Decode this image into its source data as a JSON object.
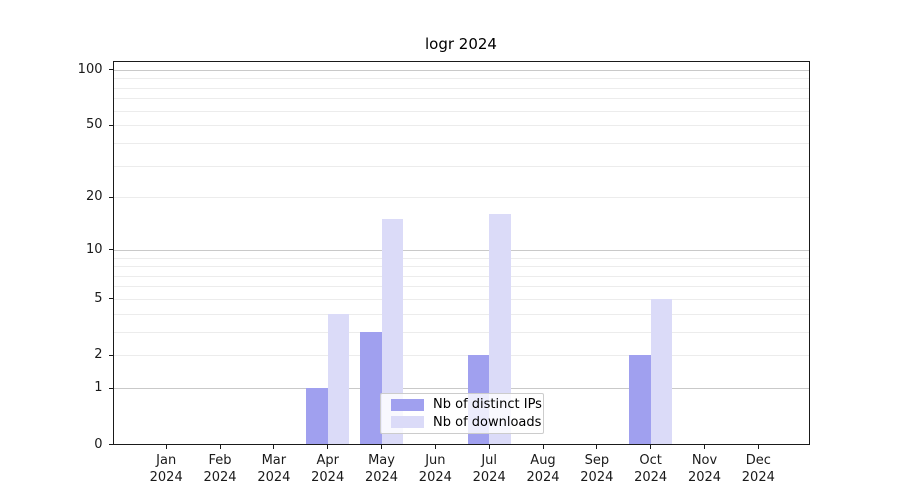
{
  "figure": {
    "title": "logr 2024"
  },
  "chart_data": {
    "type": "bar",
    "title": "logr 2024",
    "x_year": "2024",
    "x_months": [
      "Jan",
      "Feb",
      "Mar",
      "Apr",
      "May",
      "Jun",
      "Jul",
      "Aug",
      "Sep",
      "Oct",
      "Nov",
      "Dec"
    ],
    "categories": [
      "Jan 2024",
      "Feb 2024",
      "Mar 2024",
      "Apr 2024",
      "May 2024",
      "Jun 2024",
      "Jul 2024",
      "Aug 2024",
      "Sep 2024",
      "Oct 2024",
      "Nov 2024",
      "Dec 2024"
    ],
    "series": [
      {
        "name": "Nb of distinct IPs",
        "color": "#a0a0ef",
        "values": [
          0,
          0,
          0,
          1,
          3,
          0,
          2,
          0,
          0,
          2,
          0,
          0
        ]
      },
      {
        "name": "Nb of downloads",
        "color": "#dbdbf8",
        "values": [
          0,
          0,
          0,
          4,
          15,
          0,
          16,
          0,
          0,
          5,
          0,
          0
        ]
      }
    ],
    "y_scale": "log1p",
    "ylim": [
      0,
      112
    ],
    "y_axis_ticks": [
      0,
      1,
      2,
      5,
      10,
      20,
      50,
      100
    ],
    "y_major_gridlines": [
      1,
      10,
      100
    ],
    "y_minor_gridlines": [
      2,
      3,
      4,
      5,
      6,
      7,
      8,
      9,
      20,
      30,
      40,
      50,
      60,
      70,
      80,
      90
    ],
    "grid": "horizontal",
    "legend_position": "inside-bottom-center"
  },
  "colors": {
    "bar_distinct_ips": "#a0a0ef",
    "bar_downloads": "#dbdbf8",
    "major_grid": "#c9c9c9",
    "minor_grid": "#ececec",
    "spine": "#1a1a1a",
    "text": "#1a1a1a",
    "legend_border": "#cccccc"
  }
}
